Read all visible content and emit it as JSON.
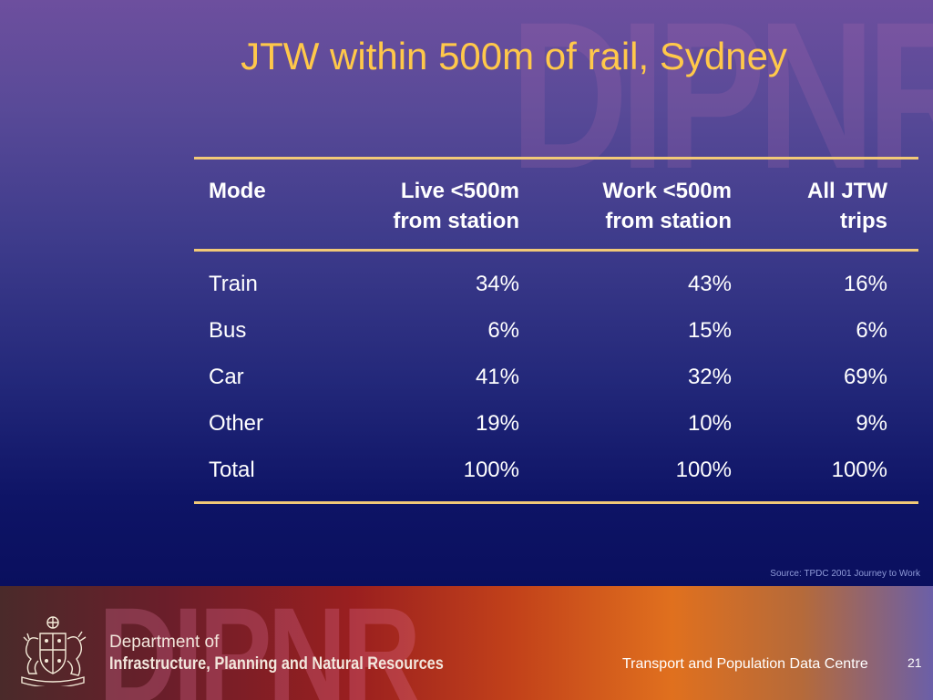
{
  "slide": {
    "title": "JTW within 500m of rail, Sydney",
    "watermark": "DIPNR"
  },
  "table": {
    "headers": {
      "mode": "Mode",
      "live": [
        "Live <500m",
        "from station"
      ],
      "work": [
        "Work <500m",
        "from station"
      ],
      "all": [
        "All JTW",
        "trips"
      ]
    },
    "rows": [
      {
        "mode": "Train",
        "live": "34%",
        "work": "43%",
        "all": "16%"
      },
      {
        "mode": "Bus",
        "live": "6%",
        "work": "15%",
        "all": "6%"
      },
      {
        "mode": "Car",
        "live": "41%",
        "work": "32%",
        "all": "69%"
      },
      {
        "mode": "Other",
        "live": "19%",
        "work": "10%",
        "all": "9%"
      },
      {
        "mode": "Total",
        "live": "100%",
        "work": "100%",
        "all": "100%"
      }
    ]
  },
  "source": "Source: TPDC 2001 Journey to Work",
  "footer": {
    "watermark": "DIPNR",
    "department_line1": "Department of",
    "department_line2": "Infrastructure, Planning and Natural Resources",
    "centre": "Transport and Population Data Centre",
    "page_number": "21"
  },
  "colors": {
    "title": "#ffc84a",
    "rule": "#f2c977",
    "text": "#ffffff",
    "source": "#8f9bd8"
  },
  "icons": [
    "nsw-coat-of-arms-icon"
  ]
}
